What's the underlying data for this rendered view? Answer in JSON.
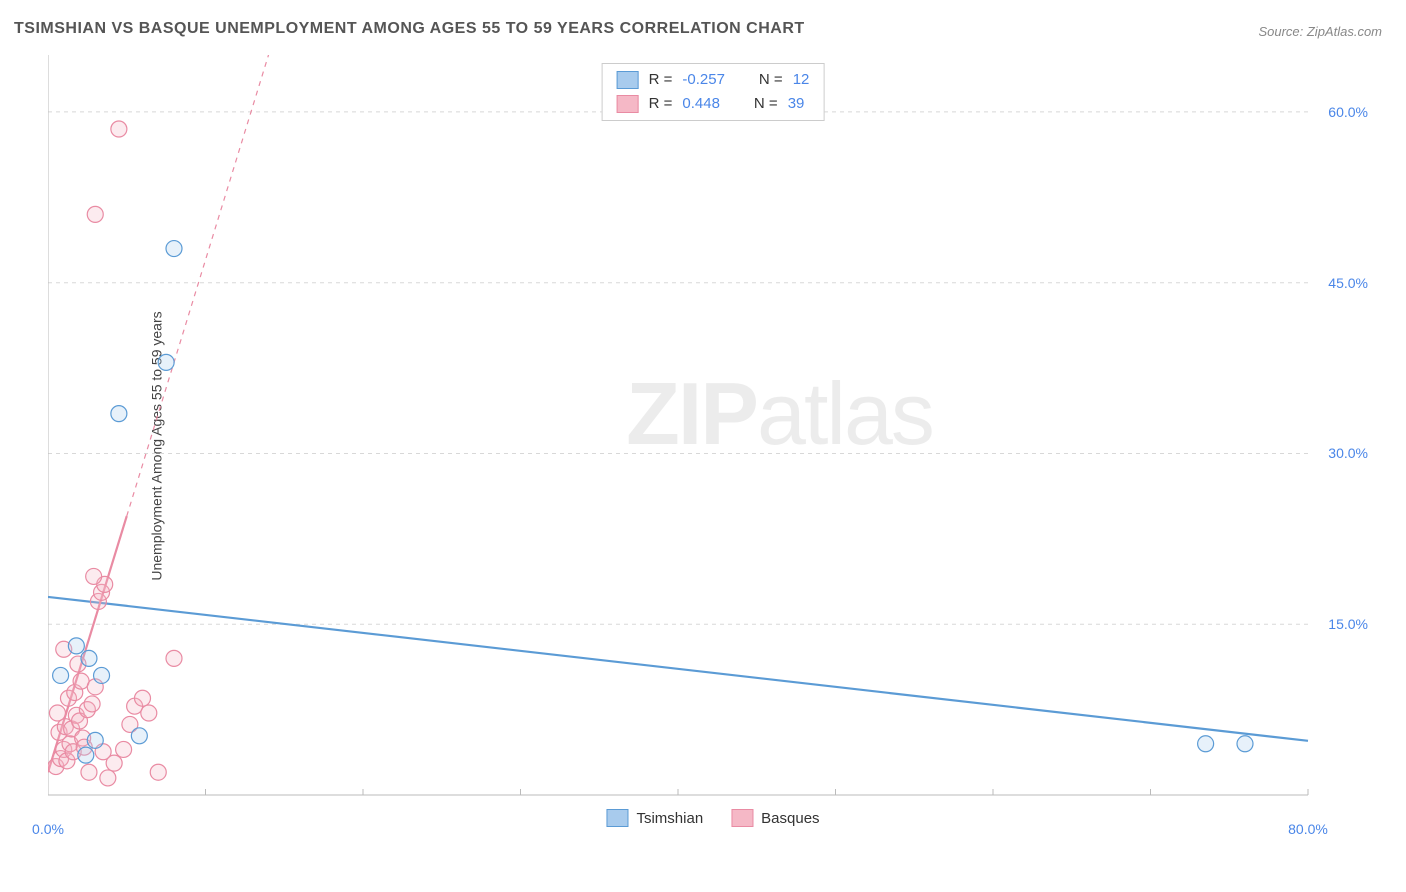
{
  "title": "TSIMSHIAN VS BASQUE UNEMPLOYMENT AMONG AGES 55 TO 59 YEARS CORRELATION CHART",
  "source_label": "Source: ZipAtlas.com",
  "ylabel": "Unemployment Among Ages 55 to 59 years",
  "watermark": {
    "bold": "ZIP",
    "light": "atlas"
  },
  "chart": {
    "type": "scatter",
    "background_color": "#ffffff",
    "grid_color": "#d8d8d8",
    "axis_color": "#bbbbbb",
    "tick_label_color": "#4a86e8",
    "xlim": [
      0,
      80
    ],
    "ylim": [
      0,
      65
    ],
    "xticks": [
      0,
      10,
      20,
      30,
      40,
      50,
      60,
      70,
      80
    ],
    "xticks_labeled": [
      0,
      80
    ],
    "yticks": [
      15,
      30,
      45,
      60
    ],
    "xtick_label_suffix": "%",
    "ytick_label_suffix": "%",
    "xtick_label_format": "0.0",
    "ytick_label_format": "0.0",
    "marker_radius": 8,
    "marker_stroke_width": 1.2,
    "marker_fill_opacity": 0.28,
    "series": {
      "tsimshian": {
        "label": "Tsimshian",
        "color_stroke": "#5b9bd5",
        "color_fill": "#a8cbed",
        "R": "-0.257",
        "N": "12",
        "trend": {
          "slope": -0.158,
          "intercept": 17.4,
          "x_from": 0,
          "x_to": 80,
          "stroke_width": 2.2
        },
        "points": [
          {
            "x": 0.8,
            "y": 10.5
          },
          {
            "x": 1.8,
            "y": 13.1
          },
          {
            "x": 2.6,
            "y": 12.0
          },
          {
            "x": 3.4,
            "y": 10.5
          },
          {
            "x": 3.0,
            "y": 4.8
          },
          {
            "x": 5.8,
            "y": 5.2
          },
          {
            "x": 2.4,
            "y": 3.5
          },
          {
            "x": 4.5,
            "y": 33.5
          },
          {
            "x": 7.5,
            "y": 38.0
          },
          {
            "x": 8.0,
            "y": 48.0
          },
          {
            "x": 73.5,
            "y": 4.5
          },
          {
            "x": 76.0,
            "y": 4.5
          }
        ]
      },
      "basques": {
        "label": "Basques",
        "color_stroke": "#e98ba3",
        "color_fill": "#f5b8c6",
        "R": "0.448",
        "N": "39",
        "trend": {
          "slope": 4.5,
          "intercept": 2.0,
          "x_from": 0,
          "x_to_solid": 5,
          "x_to_dash": 15,
          "stroke_width": 2.2
        },
        "points": [
          {
            "x": 0.5,
            "y": 2.5
          },
          {
            "x": 0.8,
            "y": 3.2
          },
          {
            "x": 1.0,
            "y": 4.0
          },
          {
            "x": 1.2,
            "y": 3.0
          },
          {
            "x": 1.4,
            "y": 4.5
          },
          {
            "x": 0.7,
            "y": 5.5
          },
          {
            "x": 1.1,
            "y": 6.0
          },
          {
            "x": 1.5,
            "y": 5.8
          },
          {
            "x": 1.8,
            "y": 7.0
          },
          {
            "x": 2.0,
            "y": 6.5
          },
          {
            "x": 2.2,
            "y": 5.0
          },
          {
            "x": 2.5,
            "y": 7.5
          },
          {
            "x": 1.3,
            "y": 8.5
          },
          {
            "x": 1.7,
            "y": 9.0
          },
          {
            "x": 2.1,
            "y": 10.0
          },
          {
            "x": 2.8,
            "y": 8.0
          },
          {
            "x": 3.0,
            "y": 9.5
          },
          {
            "x": 1.9,
            "y": 11.5
          },
          {
            "x": 1.0,
            "y": 12.8
          },
          {
            "x": 3.2,
            "y": 17.0
          },
          {
            "x": 3.4,
            "y": 17.8
          },
          {
            "x": 3.6,
            "y": 18.5
          },
          {
            "x": 2.9,
            "y": 19.2
          },
          {
            "x": 3.8,
            "y": 1.5
          },
          {
            "x": 4.2,
            "y": 2.8
          },
          {
            "x": 4.8,
            "y": 4.0
          },
          {
            "x": 5.2,
            "y": 6.2
          },
          {
            "x": 5.5,
            "y": 7.8
          },
          {
            "x": 6.0,
            "y": 8.5
          },
          {
            "x": 6.4,
            "y": 7.2
          },
          {
            "x": 7.0,
            "y": 2.0
          },
          {
            "x": 8.0,
            "y": 12.0
          },
          {
            "x": 2.6,
            "y": 2.0
          },
          {
            "x": 3.5,
            "y": 3.8
          },
          {
            "x": 0.6,
            "y": 7.2
          },
          {
            "x": 1.6,
            "y": 3.8
          },
          {
            "x": 3.0,
            "y": 51.0
          },
          {
            "x": 4.5,
            "y": 58.5
          },
          {
            "x": 2.3,
            "y": 4.2
          }
        ]
      }
    },
    "legend_top": {
      "border_color": "#cccccc",
      "r_label": "R  =",
      "n_label": "N  ="
    },
    "legend_bottom": true
  }
}
